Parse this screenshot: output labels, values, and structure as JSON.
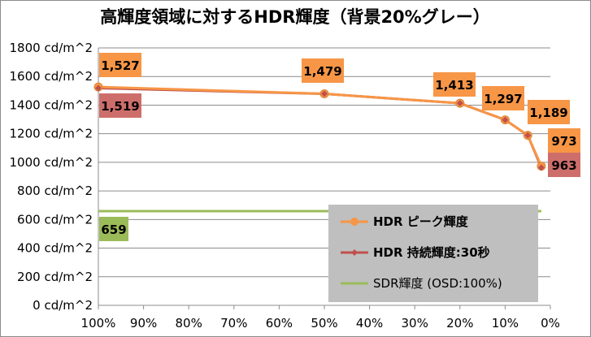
{
  "chart_data": {
    "type": "line",
    "title": "高輝度領域に対するHDR輝度（背景20%グレー）",
    "y_tick_labels": [
      "0 cd/m^2",
      "200 cd/m^2",
      "400 cd/m^2",
      "600 cd/m^2",
      "800 cd/m^2",
      "1000 cd/m^2",
      "1200 cd/m^2",
      "1400 cd/m^2",
      "1600 cd/m^2",
      "1800 cd/m^2"
    ],
    "x_tick_labels": [
      "100%",
      "90%",
      "80%",
      "70%",
      "60%",
      "50%",
      "40%",
      "30%",
      "20%",
      "10%",
      "0%"
    ],
    "x_range": [
      100,
      0
    ],
    "ylim": [
      0,
      1800
    ],
    "grid": "horizontal",
    "legend_position": "bottom-right",
    "series": [
      {
        "name": "HDR ピーク輝度",
        "color": "#f79646",
        "marker": "circle",
        "x": [
          100,
          50,
          20,
          10,
          5,
          2
        ],
        "values": [
          1527,
          1479,
          1413,
          1297,
          1189,
          973
        ],
        "labels": [
          "1,527",
          "1,479",
          "1,413",
          "1,297",
          "1,189",
          "973"
        ],
        "label_bg": "#f79646"
      },
      {
        "name": "HDR 持続輝度:30秒",
        "color": "#c0504d",
        "marker": "diamond",
        "x": [
          100,
          50,
          20,
          10,
          5,
          2
        ],
        "values": [
          1519,
          1479,
          1413,
          1297,
          1189,
          963
        ],
        "labels": [
          "1,519",
          "",
          "",
          "",
          "",
          "963"
        ],
        "label_bg": "#cd6e6b"
      },
      {
        "name": "SDR輝度 (OSD:100%)",
        "color": "#9bbb59",
        "marker": "none",
        "x": [
          100,
          2
        ],
        "values": [
          659,
          659
        ],
        "labels": [
          "659",
          ""
        ],
        "label_bg": "#9bbb59"
      }
    ]
  }
}
